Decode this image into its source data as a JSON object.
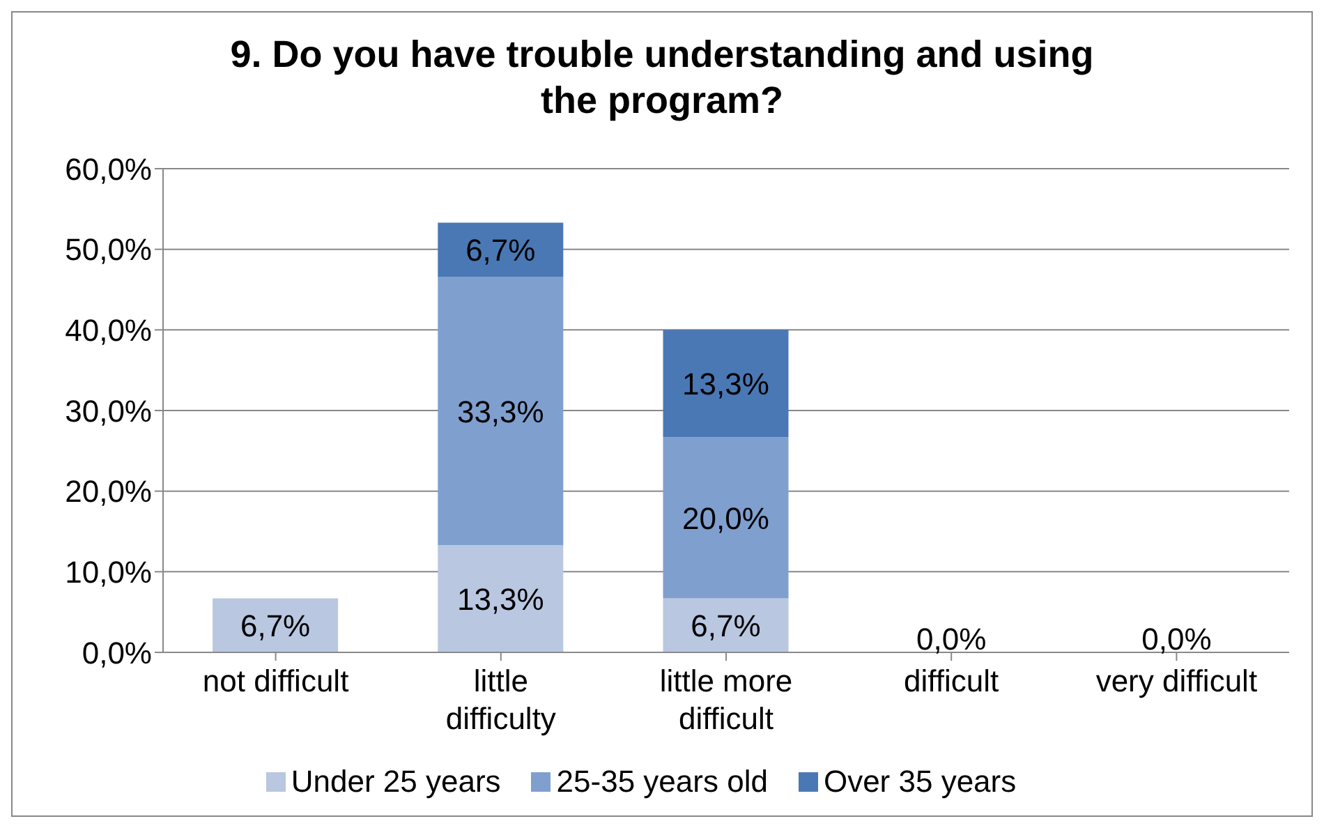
{
  "chart_data": {
    "type": "bar",
    "title": "9. Do you have trouble understanding and using the program?",
    "categories": [
      "not difficult",
      "little difficulty",
      "little more difficult",
      "difficult",
      "very difficult"
    ],
    "stacked": true,
    "grid": "y",
    "legend": "bottom",
    "ylim": [
      0,
      60
    ],
    "yticks": [
      {
        "value": 0,
        "label": "0,0%"
      },
      {
        "value": 10,
        "label": "10,0%"
      },
      {
        "value": 20,
        "label": "20,0%"
      },
      {
        "value": 30,
        "label": "30,0%"
      },
      {
        "value": 40,
        "label": "40,0%"
      },
      {
        "value": 50,
        "label": "50,0%"
      },
      {
        "value": 60,
        "label": "60,0%"
      }
    ],
    "series": [
      {
        "name": "Under 25 years",
        "color": "#b9c7e0",
        "values": [
          6.7,
          13.3,
          6.7,
          0,
          0
        ],
        "value_labels": [
          "6,7%",
          "13,3%",
          "6,7%",
          "0,0%",
          "0,0%"
        ]
      },
      {
        "name": "25-35 years old",
        "color": "#7f9fcf",
        "values": [
          0,
          33.3,
          20.0,
          0,
          0
        ],
        "value_labels": [
          null,
          "33,3%",
          "20,0%",
          null,
          null
        ]
      },
      {
        "name": "Over 35 years",
        "color": "#4a78b5",
        "values": [
          0,
          6.7,
          13.3,
          0,
          0
        ],
        "value_labels": [
          null,
          "6,7%",
          "13,3%",
          null,
          null
        ]
      }
    ]
  }
}
